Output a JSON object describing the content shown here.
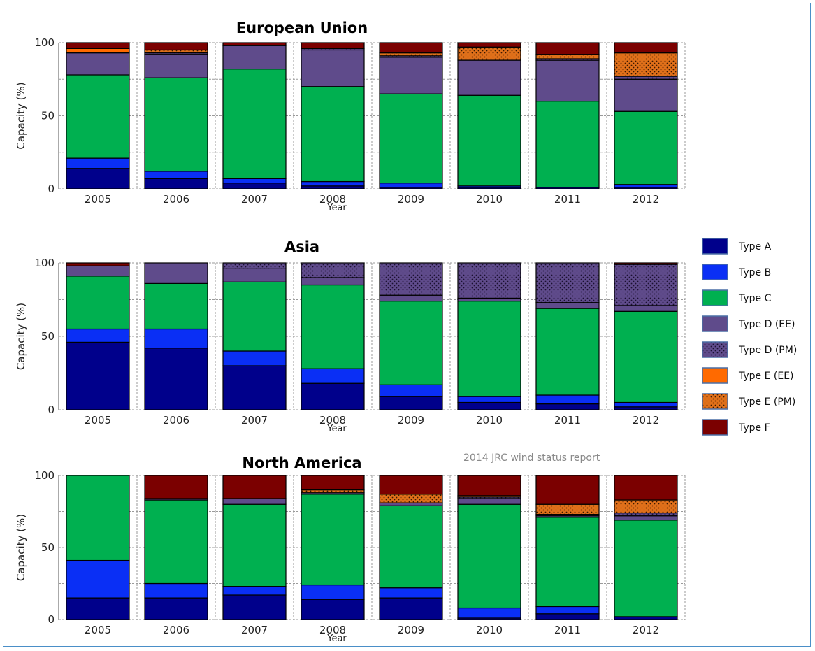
{
  "colors": {
    "Type A": "#00008b",
    "Type B": "#0a2ff5",
    "Type C": "#00b050",
    "Type D (EE)": "#5f4b8b",
    "Type D (PM)": "#5f4b8b",
    "Type E (EE)": "#ff6a00",
    "Type E (PM)": "#e0701a",
    "Type F": "#7b0000"
  },
  "patterned": [
    "Type D (PM)",
    "Type E (PM)"
  ],
  "credit": "2014 JRC wind status report",
  "chart_data": [
    {
      "type": "bar",
      "stacked": true,
      "title": "European Union",
      "xlabel": "Year",
      "ylabel": "Capacity (%)",
      "ylim": [
        0,
        100
      ],
      "yticks": [
        "0",
        "50",
        "100"
      ],
      "grid": true,
      "categories": [
        "2005",
        "2006",
        "2007",
        "2008",
        "2009",
        "2010",
        "2011",
        "2012"
      ],
      "series": [
        {
          "name": "Type A",
          "values": [
            14,
            7,
            4,
            2,
            1,
            1,
            1,
            1
          ]
        },
        {
          "name": "Type B",
          "values": [
            7,
            5,
            3,
            3,
            3,
            1,
            0,
            2
          ]
        },
        {
          "name": "Type C",
          "values": [
            57,
            64,
            75,
            65,
            61,
            62,
            59,
            50
          ]
        },
        {
          "name": "Type D (EE)",
          "values": [
            15,
            16,
            16,
            25,
            25,
            24,
            28,
            22
          ]
        },
        {
          "name": "Type D (PM)",
          "values": [
            0,
            1,
            0,
            1,
            1,
            0,
            1,
            2
          ]
        },
        {
          "name": "Type E (EE)",
          "values": [
            3,
            0,
            0,
            0,
            0,
            0,
            0,
            0
          ]
        },
        {
          "name": "Type E (PM)",
          "values": [
            0,
            2,
            0,
            0,
            2,
            9,
            3,
            16
          ]
        },
        {
          "name": "Type F",
          "values": [
            4,
            5,
            2,
            4,
            7,
            3,
            8,
            7
          ]
        }
      ]
    },
    {
      "type": "bar",
      "stacked": true,
      "title": "Asia",
      "xlabel": "Year",
      "ylabel": "Capacity (%)",
      "ylim": [
        0,
        100
      ],
      "yticks": [
        "0",
        "50",
        "100"
      ],
      "grid": true,
      "categories": [
        "2005",
        "2006",
        "2007",
        "2008",
        "2009",
        "2010",
        "2011",
        "2012"
      ],
      "series": [
        {
          "name": "Type A",
          "values": [
            46,
            42,
            30,
            18,
            9,
            5,
            4,
            2
          ]
        },
        {
          "name": "Type B",
          "values": [
            9,
            13,
            10,
            10,
            8,
            4,
            6,
            3
          ]
        },
        {
          "name": "Type C",
          "values": [
            36,
            31,
            47,
            57,
            57,
            65,
            59,
            62
          ]
        },
        {
          "name": "Type D (EE)",
          "values": [
            7,
            14,
            9,
            5,
            4,
            2,
            4,
            4
          ]
        },
        {
          "name": "Type D (PM)",
          "values": [
            0,
            0,
            4,
            10,
            22,
            24,
            27,
            28
          ]
        },
        {
          "name": "Type E (EE)",
          "values": [
            0,
            0,
            0,
            0,
            0,
            0,
            0,
            0
          ]
        },
        {
          "name": "Type E (PM)",
          "values": [
            0,
            0,
            0,
            0,
            0,
            0,
            0,
            0
          ]
        },
        {
          "name": "Type F",
          "values": [
            2,
            0,
            0,
            0,
            0,
            0,
            0,
            1
          ]
        }
      ]
    },
    {
      "type": "bar",
      "stacked": true,
      "title": "North America",
      "xlabel": "Year",
      "ylabel": "Capacity (%)",
      "ylim": [
        0,
        100
      ],
      "yticks": [
        "0",
        "50",
        "100"
      ],
      "grid": true,
      "categories": [
        "2005",
        "2006",
        "2007",
        "2008",
        "2009",
        "2010",
        "2011",
        "2012"
      ],
      "series": [
        {
          "name": "Type A",
          "values": [
            15,
            15,
            17,
            14,
            15,
            1,
            4,
            2
          ]
        },
        {
          "name": "Type B",
          "values": [
            26,
            10,
            6,
            10,
            7,
            7,
            5,
            0
          ]
        },
        {
          "name": "Type C",
          "values": [
            59,
            58,
            57,
            63,
            57,
            72,
            62,
            67
          ]
        },
        {
          "name": "Type D (EE)",
          "values": [
            0,
            1,
            4,
            1,
            2,
            4,
            1,
            3
          ]
        },
        {
          "name": "Type D (PM)",
          "values": [
            0,
            0,
            0,
            0,
            0,
            1,
            1,
            2
          ]
        },
        {
          "name": "Type E (EE)",
          "values": [
            0,
            0,
            0,
            0,
            0,
            0,
            0,
            0
          ]
        },
        {
          "name": "Type E (PM)",
          "values": [
            0,
            0,
            0,
            2,
            6,
            1,
            7,
            9
          ]
        },
        {
          "name": "Type F",
          "values": [
            0,
            16,
            16,
            10,
            13,
            14,
            20,
            17
          ]
        }
      ]
    }
  ],
  "legend": {
    "position": "right",
    "items": [
      "Type A",
      "Type B",
      "Type C",
      "Type D (EE)",
      "Type D (PM)",
      "Type E (EE)",
      "Type E (PM)",
      "Type F"
    ]
  }
}
